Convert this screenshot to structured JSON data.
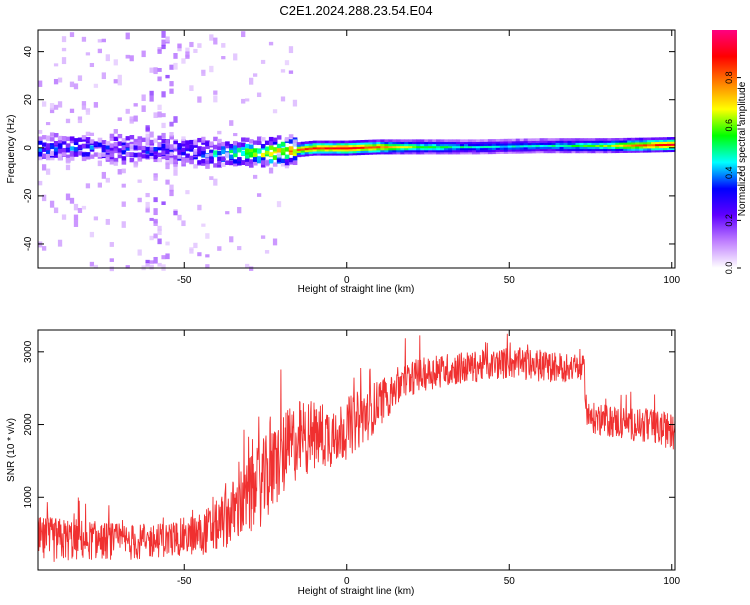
{
  "title": "C2E1.2024.288.23.54.E04",
  "chart_data": [
    {
      "type": "heatmap",
      "xlabel": "Height of straight line (km)",
      "ylabel": "Frequency (Hz)",
      "xlim": [
        -95,
        101
      ],
      "ylim": [
        -50,
        49
      ],
      "x_ticks": [
        -50,
        0,
        50,
        100
      ],
      "y_ticks": [
        -40,
        -20,
        0,
        20,
        40
      ],
      "grid": false,
      "colorbar": {
        "label": "Normalized spectral amplitude",
        "range": [
          0,
          1
        ],
        "ticks": [
          0.0,
          0.2,
          0.4,
          0.6,
          0.8
        ],
        "colormap": [
          "#ffffff",
          "#c080ff",
          "#6000ff",
          "#0000ff",
          "#00ffff",
          "#00ff00",
          "#ffff00",
          "#ff8000",
          "#ff0000",
          "#ff0080"
        ]
      },
      "ridge": [
        {
          "x": -95,
          "y": 0.2,
          "amp": 0.35
        },
        {
          "x": -80,
          "y": 0.0,
          "amp": 0.3
        },
        {
          "x": -60,
          "y": -1.0,
          "amp": 0.3
        },
        {
          "x": -40,
          "y": -2.0,
          "amp": 0.4
        },
        {
          "x": -25,
          "y": -2.0,
          "amp": 0.7
        },
        {
          "x": -10,
          "y": 0.0,
          "amp": 0.85
        },
        {
          "x": 0,
          "y": 0.0,
          "amp": 0.9
        },
        {
          "x": 10,
          "y": 0.5,
          "amp": 0.8
        },
        {
          "x": 20,
          "y": 0.5,
          "amp": 0.6
        },
        {
          "x": 40,
          "y": 0.5,
          "amp": 0.45
        },
        {
          "x": 60,
          "y": 1.0,
          "amp": 0.45
        },
        {
          "x": 80,
          "y": 1.0,
          "amp": 0.6
        },
        {
          "x": 90,
          "y": 1.2,
          "amp": 0.8
        },
        {
          "x": 101,
          "y": 1.5,
          "amp": 0.9
        }
      ]
    },
    {
      "type": "line",
      "xlabel": "Height of straight line (km)",
      "ylabel": "SNR (10 * v/v)",
      "xlim": [
        -95,
        101
      ],
      "ylim": [
        0,
        3300
      ],
      "x_ticks": [
        -50,
        0,
        50,
        100
      ],
      "y_ticks": [
        1000,
        2000,
        3000
      ],
      "grid": false,
      "color": "#f03030",
      "series": [
        {
          "x": [
            -95,
            -85,
            -75,
            -65,
            -55,
            -45,
            -40,
            -35,
            -30,
            -25,
            -20,
            -15,
            -10,
            -5,
            0,
            5,
            10,
            15,
            20,
            25,
            30,
            40,
            50,
            60,
            70,
            73,
            74,
            80,
            90,
            101
          ],
          "y": [
            400,
            420,
            400,
            380,
            420,
            500,
            600,
            800,
            1000,
            1250,
            1550,
            1800,
            1850,
            1850,
            1950,
            2100,
            2300,
            2500,
            2650,
            2700,
            2750,
            2800,
            2850,
            2800,
            2780,
            2750,
            2100,
            2050,
            2000,
            1900
          ],
          "noise": [
            330,
            300,
            260,
            250,
            240,
            300,
            360,
            450,
            550,
            600,
            600,
            550,
            500,
            450,
            430,
            400,
            330,
            300,
            250,
            230,
            230,
            220,
            220,
            220,
            200,
            200,
            220,
            220,
            240,
            250
          ]
        }
      ]
    }
  ]
}
